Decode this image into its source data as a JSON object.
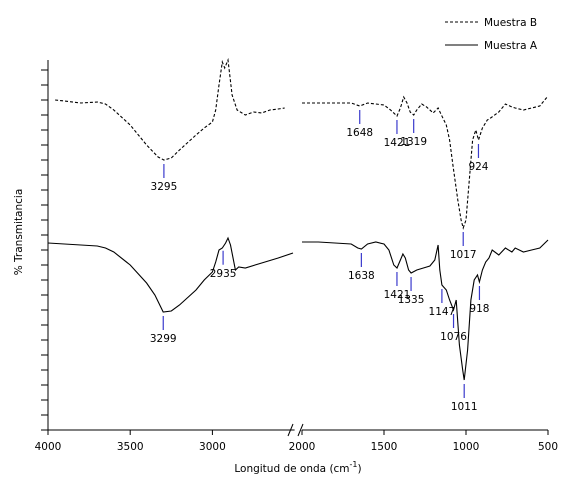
{
  "chart_data": {
    "type": "line",
    "ylabel": "% Transmitancia",
    "xlabel": {
      "text": "Longitud de onda (cm",
      "sup": "-1",
      "end": ")"
    },
    "x_segments": [
      {
        "xlim": [
          4000,
          2500
        ],
        "xticks": [
          4000,
          3500,
          3000
        ]
      },
      {
        "xlim": [
          2000,
          500
        ],
        "xticks": [
          2000,
          1500,
          1000,
          500
        ]
      }
    ],
    "ylim": [
      0,
      370
    ],
    "yticks": [
      0,
      15,
      30,
      45,
      60,
      75,
      90,
      105,
      120,
      135,
      150,
      165,
      180,
      195,
      210,
      225,
      240,
      255,
      270,
      285,
      300,
      315,
      330,
      345,
      360
    ],
    "legend": "upper right",
    "annotation_color": "#3a3acc",
    "series": [
      {
        "name": "Muestra B",
        "color": "#000000",
        "dash": "dashed",
        "x": [
          3957,
          3900,
          3800,
          3700,
          3650,
          3600,
          3500,
          3400,
          3330,
          3295,
          3250,
          3200,
          3100,
          3050,
          3000,
          2980,
          2960,
          2940,
          2925,
          2905,
          2880,
          2850,
          2800,
          2750,
          2700,
          2650,
          2600,
          2560,
          null,
          2000,
          1900,
          1800,
          1700,
          1648,
          1600,
          1500,
          1460,
          1421,
          1400,
          1380,
          1360,
          1340,
          1319,
          1300,
          1270,
          1240,
          1200,
          1170,
          1150,
          1120,
          1100,
          1080,
          1050,
          1030,
          1017,
          1000,
          980,
          960,
          940,
          924,
          900,
          870,
          850,
          800,
          760,
          720,
          700,
          650,
          600,
          550,
          520,
          500
        ],
        "values": [
          330,
          329,
          327,
          328,
          326,
          320,
          305,
          285,
          273,
          270,
          272,
          280,
          295,
          302,
          308,
          320,
          345,
          368,
          362,
          370,
          335,
          320,
          315,
          318,
          317,
          320,
          321,
          322,
          null,
          327,
          327,
          327,
          327,
          324,
          327,
          325,
          320,
          314,
          322,
          333,
          327,
          318,
          315,
          320,
          326,
          323,
          317,
          322,
          315,
          305,
          290,
          265,
          230,
          210,
          202,
          210,
          250,
          290,
          300,
          290,
          302,
          310,
          312,
          318,
          326,
          323,
          322,
          320,
          322,
          324,
          330,
          334
        ]
      },
      {
        "name": "Muestra A",
        "color": "#000000",
        "dash": "solid",
        "x": [
          4000,
          3900,
          3800,
          3700,
          3650,
          3600,
          3500,
          3400,
          3350,
          3299,
          3250,
          3200,
          3100,
          3050,
          3000,
          2980,
          2960,
          2940,
          2920,
          2905,
          2890,
          2860,
          2840,
          2800,
          2700,
          2600,
          2510,
          null,
          2000,
          1900,
          1800,
          1700,
          1660,
          1638,
          1600,
          1550,
          1500,
          1470,
          1440,
          1421,
          1400,
          1385,
          1370,
          1350,
          1335,
          1300,
          1260,
          1220,
          1190,
          1170,
          1160,
          1147,
          1120,
          1100,
          1076,
          1060,
          1040,
          1020,
          1011,
          990,
          970,
          950,
          930,
          918,
          900,
          880,
          860,
          840,
          800,
          760,
          720,
          700,
          650,
          600,
          550,
          500
        ],
        "values": [
          187,
          186,
          185,
          184,
          182,
          178,
          165,
          147,
          135,
          118,
          119,
          125,
          140,
          150,
          158,
          168,
          180,
          182,
          187,
          192,
          185,
          160,
          163,
          162,
          167,
          172,
          177,
          null,
          188,
          188,
          187,
          186,
          182,
          181,
          186,
          188,
          186,
          180,
          165,
          162,
          170,
          176,
          172,
          160,
          157,
          160,
          162,
          164,
          170,
          185,
          160,
          145,
          140,
          130,
          120,
          130,
          85,
          60,
          50,
          80,
          130,
          150,
          155,
          148,
          160,
          168,
          172,
          180,
          175,
          182,
          178,
          182,
          178,
          180,
          182,
          190
        ]
      }
    ],
    "annotations": [
      {
        "series": 0,
        "x": 3295
      },
      {
        "series": 0,
        "x": 1648
      },
      {
        "series": 0,
        "x": 1421
      },
      {
        "series": 0,
        "x": 1319
      },
      {
        "series": 0,
        "x": 1017
      },
      {
        "series": 0,
        "x": 924
      },
      {
        "series": 1,
        "x": 3299
      },
      {
        "series": 1,
        "x": 2935
      },
      {
        "series": 1,
        "x": 1638
      },
      {
        "series": 1,
        "x": 1421
      },
      {
        "series": 1,
        "x": 1335
      },
      {
        "series": 1,
        "x": 1147
      },
      {
        "series": 1,
        "x": 1076
      },
      {
        "series": 1,
        "x": 1011
      },
      {
        "series": 1,
        "x": 918
      }
    ]
  }
}
